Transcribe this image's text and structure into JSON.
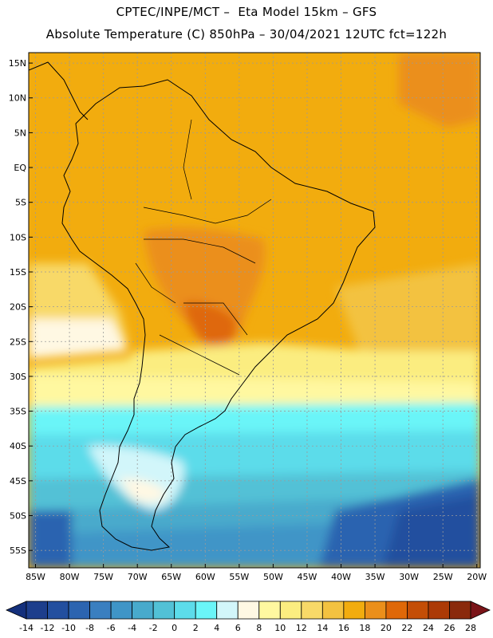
{
  "header": {
    "line1": "CPTEC/INPE/MCT –  Eta Model 15km – GFS",
    "line2": "Absolute Temperature (C) 850hPa – 30/04/2021 12UTC fct=122h"
  },
  "map": {
    "lat_labels": [
      "15N",
      "10N",
      "5N",
      "EQ",
      "5S",
      "10S",
      "15S",
      "20S",
      "25S",
      "30S",
      "35S",
      "40S",
      "45S",
      "50S",
      "55S"
    ],
    "lat_values": [
      15,
      10,
      5,
      0,
      -5,
      -10,
      -15,
      -20,
      -25,
      -30,
      -35,
      -40,
      -45,
      -50,
      -55
    ],
    "lon_labels": [
      "85W",
      "80W",
      "75W",
      "70W",
      "65W",
      "60W",
      "55W",
      "50W",
      "45W",
      "40W",
      "35W",
      "30W",
      "25W",
      "20W"
    ],
    "lon_values": [
      -85,
      -80,
      -75,
      -70,
      -65,
      -60,
      -55,
      -50,
      -45,
      -40,
      -35,
      -30,
      -25,
      -20
    ],
    "lat_range": [
      -57.5,
      16.5
    ],
    "lon_range": [
      -86,
      -19.5
    ]
  },
  "colorbar": {
    "labels": [
      "-14",
      "-12",
      "-10",
      "-8",
      "-6",
      "-4",
      "-2",
      "0",
      "2",
      "4",
      "6",
      "8",
      "10",
      "12",
      "14",
      "16",
      "18",
      "20",
      "22",
      "24",
      "26",
      "28"
    ],
    "colors": [
      "#1d3e8c",
      "#234f9f",
      "#2c64b0",
      "#3a7fc0",
      "#3f95c7",
      "#48aacc",
      "#52c1d6",
      "#5cdcea",
      "#6af5f8",
      "#d2f6fa",
      "#fff8e3",
      "#fff8a0",
      "#fbed80",
      "#f8d968",
      "#f3c240",
      "#f2ac0e",
      "#eb8f1a",
      "#df6808",
      "#c44e06",
      "#ac3a06",
      "#8a2a0c"
    ],
    "low_color": "#14307c",
    "high_color": "#7a1418"
  }
}
